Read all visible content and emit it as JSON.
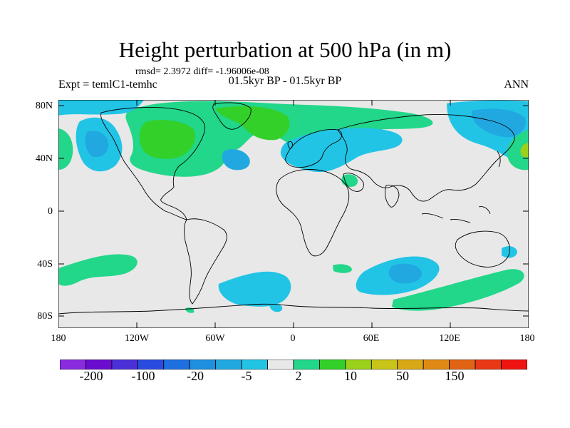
{
  "title": "Height perturbation at 500 hPa (in m)",
  "stats": "rmsd= 2.3972 diff= -1.96006e-08",
  "experiment": "Expt = temlC1-temhc",
  "period": "01.5kyr BP - 01.5kyr BP",
  "season": "ANN",
  "lat_labels": [
    "80N",
    "40N",
    "0",
    "40S",
    "80S"
  ],
  "lon_labels": [
    "180",
    "120W",
    "60W",
    "0",
    "60E",
    "120E",
    "180"
  ],
  "colorbar": {
    "colors": [
      "#8a2be2",
      "#6a0dd0",
      "#4b2fd8",
      "#2a4be0",
      "#1e6fe0",
      "#1f8fe0",
      "#21a8e0",
      "#22c4e6",
      "#e8e8e8",
      "#22d68a",
      "#33d02a",
      "#9ad11a",
      "#c8c418",
      "#d9a816",
      "#e08a14",
      "#e06414",
      "#e83814",
      "#f01410"
    ],
    "labels": [
      "-200",
      "-100",
      "-20",
      "-5",
      "2",
      "10",
      "50",
      "150"
    ]
  },
  "fill_colors": {
    "neutral": "#e8e8e8",
    "weak_negative": "#22c4e6",
    "negative": "#21a8e0",
    "weak_positive": "#22d68a",
    "positive": "#33d02a",
    "strong_positive": "#9ad11a"
  }
}
